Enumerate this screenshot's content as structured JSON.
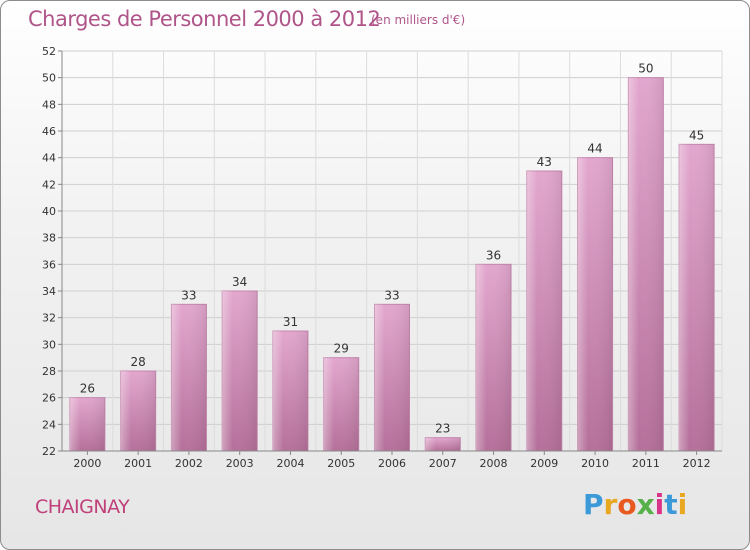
{
  "title": "Charges de Personnel 2000 à 2012",
  "subtitle": "(en milliers d'€)",
  "commune": "CHAIGNAY",
  "logo": {
    "letters": [
      "P",
      "r",
      "o",
      "x",
      "i",
      "t",
      "i"
    ],
    "colors": [
      "#3d9ad8",
      "#e8a820",
      "#e85a1f",
      "#56b14a",
      "#d9348a",
      "#3d9ad8",
      "#e8a820"
    ]
  },
  "chart_data": {
    "type": "bar",
    "categories": [
      "2000",
      "2001",
      "2002",
      "2003",
      "2004",
      "2005",
      "2006",
      "2007",
      "2008",
      "2009",
      "2010",
      "2011",
      "2012"
    ],
    "values": [
      26,
      28,
      33,
      34,
      31,
      29,
      33,
      23,
      36,
      43,
      44,
      50,
      45
    ],
    "ylim": [
      22,
      52
    ],
    "yticks": [
      22,
      24,
      26,
      28,
      30,
      32,
      34,
      36,
      38,
      40,
      42,
      44,
      46,
      48,
      50,
      52
    ],
    "grid": true,
    "bar_color": "#d987b7"
  }
}
